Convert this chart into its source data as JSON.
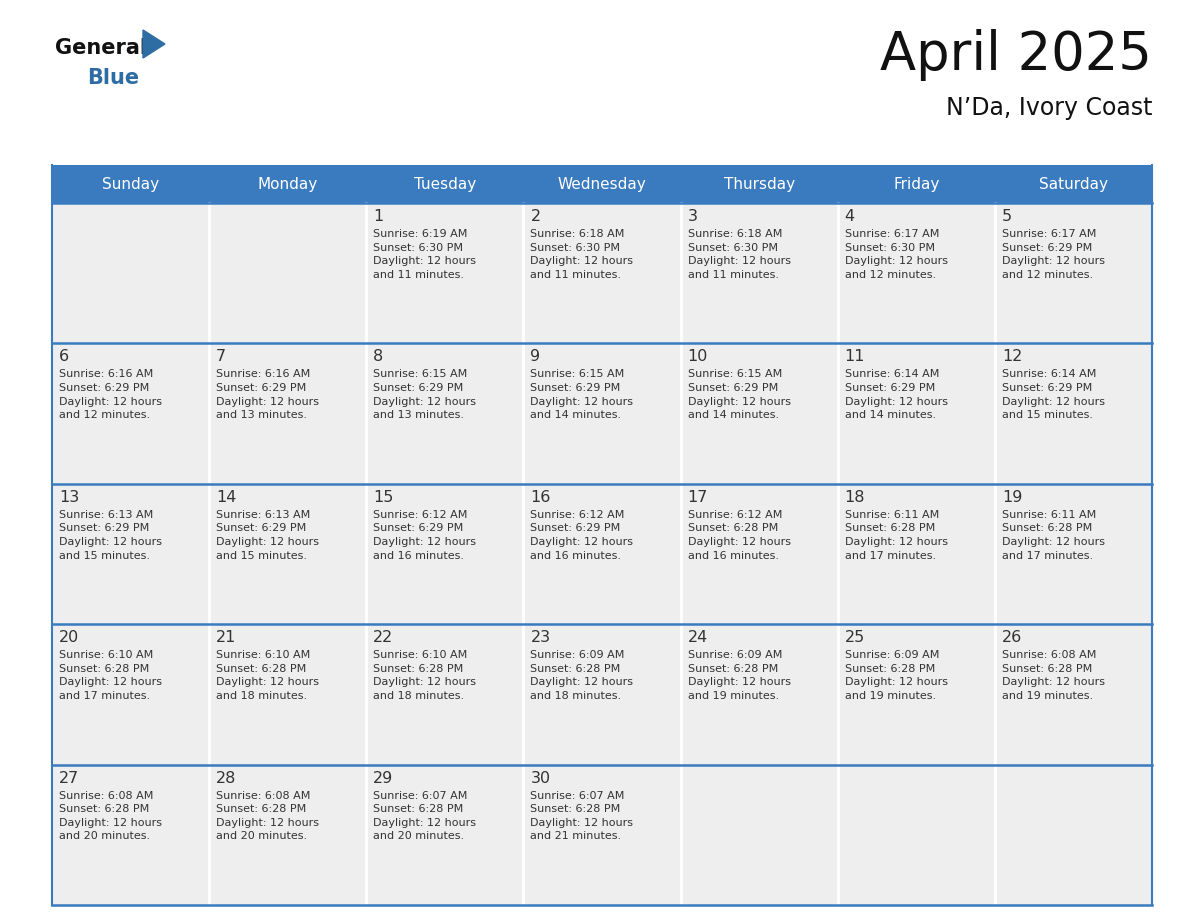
{
  "title": "April 2025",
  "subtitle": "N’Da, Ivory Coast",
  "header_color": "#3a7bbf",
  "header_text_color": "#ffffff",
  "cell_bg_color": "#eeeeee",
  "border_color": "#3a7bbf",
  "text_color": "#333333",
  "days_of_week": [
    "Sunday",
    "Monday",
    "Tuesday",
    "Wednesday",
    "Thursday",
    "Friday",
    "Saturday"
  ],
  "weeks": [
    [
      {
        "day": "",
        "info": ""
      },
      {
        "day": "",
        "info": ""
      },
      {
        "day": "1",
        "info": "Sunrise: 6:19 AM\nSunset: 6:30 PM\nDaylight: 12 hours\nand 11 minutes."
      },
      {
        "day": "2",
        "info": "Sunrise: 6:18 AM\nSunset: 6:30 PM\nDaylight: 12 hours\nand 11 minutes."
      },
      {
        "day": "3",
        "info": "Sunrise: 6:18 AM\nSunset: 6:30 PM\nDaylight: 12 hours\nand 11 minutes."
      },
      {
        "day": "4",
        "info": "Sunrise: 6:17 AM\nSunset: 6:30 PM\nDaylight: 12 hours\nand 12 minutes."
      },
      {
        "day": "5",
        "info": "Sunrise: 6:17 AM\nSunset: 6:29 PM\nDaylight: 12 hours\nand 12 minutes."
      }
    ],
    [
      {
        "day": "6",
        "info": "Sunrise: 6:16 AM\nSunset: 6:29 PM\nDaylight: 12 hours\nand 12 minutes."
      },
      {
        "day": "7",
        "info": "Sunrise: 6:16 AM\nSunset: 6:29 PM\nDaylight: 12 hours\nand 13 minutes."
      },
      {
        "day": "8",
        "info": "Sunrise: 6:15 AM\nSunset: 6:29 PM\nDaylight: 12 hours\nand 13 minutes."
      },
      {
        "day": "9",
        "info": "Sunrise: 6:15 AM\nSunset: 6:29 PM\nDaylight: 12 hours\nand 14 minutes."
      },
      {
        "day": "10",
        "info": "Sunrise: 6:15 AM\nSunset: 6:29 PM\nDaylight: 12 hours\nand 14 minutes."
      },
      {
        "day": "11",
        "info": "Sunrise: 6:14 AM\nSunset: 6:29 PM\nDaylight: 12 hours\nand 14 minutes."
      },
      {
        "day": "12",
        "info": "Sunrise: 6:14 AM\nSunset: 6:29 PM\nDaylight: 12 hours\nand 15 minutes."
      }
    ],
    [
      {
        "day": "13",
        "info": "Sunrise: 6:13 AM\nSunset: 6:29 PM\nDaylight: 12 hours\nand 15 minutes."
      },
      {
        "day": "14",
        "info": "Sunrise: 6:13 AM\nSunset: 6:29 PM\nDaylight: 12 hours\nand 15 minutes."
      },
      {
        "day": "15",
        "info": "Sunrise: 6:12 AM\nSunset: 6:29 PM\nDaylight: 12 hours\nand 16 minutes."
      },
      {
        "day": "16",
        "info": "Sunrise: 6:12 AM\nSunset: 6:29 PM\nDaylight: 12 hours\nand 16 minutes."
      },
      {
        "day": "17",
        "info": "Sunrise: 6:12 AM\nSunset: 6:28 PM\nDaylight: 12 hours\nand 16 minutes."
      },
      {
        "day": "18",
        "info": "Sunrise: 6:11 AM\nSunset: 6:28 PM\nDaylight: 12 hours\nand 17 minutes."
      },
      {
        "day": "19",
        "info": "Sunrise: 6:11 AM\nSunset: 6:28 PM\nDaylight: 12 hours\nand 17 minutes."
      }
    ],
    [
      {
        "day": "20",
        "info": "Sunrise: 6:10 AM\nSunset: 6:28 PM\nDaylight: 12 hours\nand 17 minutes."
      },
      {
        "day": "21",
        "info": "Sunrise: 6:10 AM\nSunset: 6:28 PM\nDaylight: 12 hours\nand 18 minutes."
      },
      {
        "day": "22",
        "info": "Sunrise: 6:10 AM\nSunset: 6:28 PM\nDaylight: 12 hours\nand 18 minutes."
      },
      {
        "day": "23",
        "info": "Sunrise: 6:09 AM\nSunset: 6:28 PM\nDaylight: 12 hours\nand 18 minutes."
      },
      {
        "day": "24",
        "info": "Sunrise: 6:09 AM\nSunset: 6:28 PM\nDaylight: 12 hours\nand 19 minutes."
      },
      {
        "day": "25",
        "info": "Sunrise: 6:09 AM\nSunset: 6:28 PM\nDaylight: 12 hours\nand 19 minutes."
      },
      {
        "day": "26",
        "info": "Sunrise: 6:08 AM\nSunset: 6:28 PM\nDaylight: 12 hours\nand 19 minutes."
      }
    ],
    [
      {
        "day": "27",
        "info": "Sunrise: 6:08 AM\nSunset: 6:28 PM\nDaylight: 12 hours\nand 20 minutes."
      },
      {
        "day": "28",
        "info": "Sunrise: 6:08 AM\nSunset: 6:28 PM\nDaylight: 12 hours\nand 20 minutes."
      },
      {
        "day": "29",
        "info": "Sunrise: 6:07 AM\nSunset: 6:28 PM\nDaylight: 12 hours\nand 20 minutes."
      },
      {
        "day": "30",
        "info": "Sunrise: 6:07 AM\nSunset: 6:28 PM\nDaylight: 12 hours\nand 21 minutes."
      },
      {
        "day": "",
        "info": ""
      },
      {
        "day": "",
        "info": ""
      },
      {
        "day": "",
        "info": ""
      }
    ]
  ]
}
